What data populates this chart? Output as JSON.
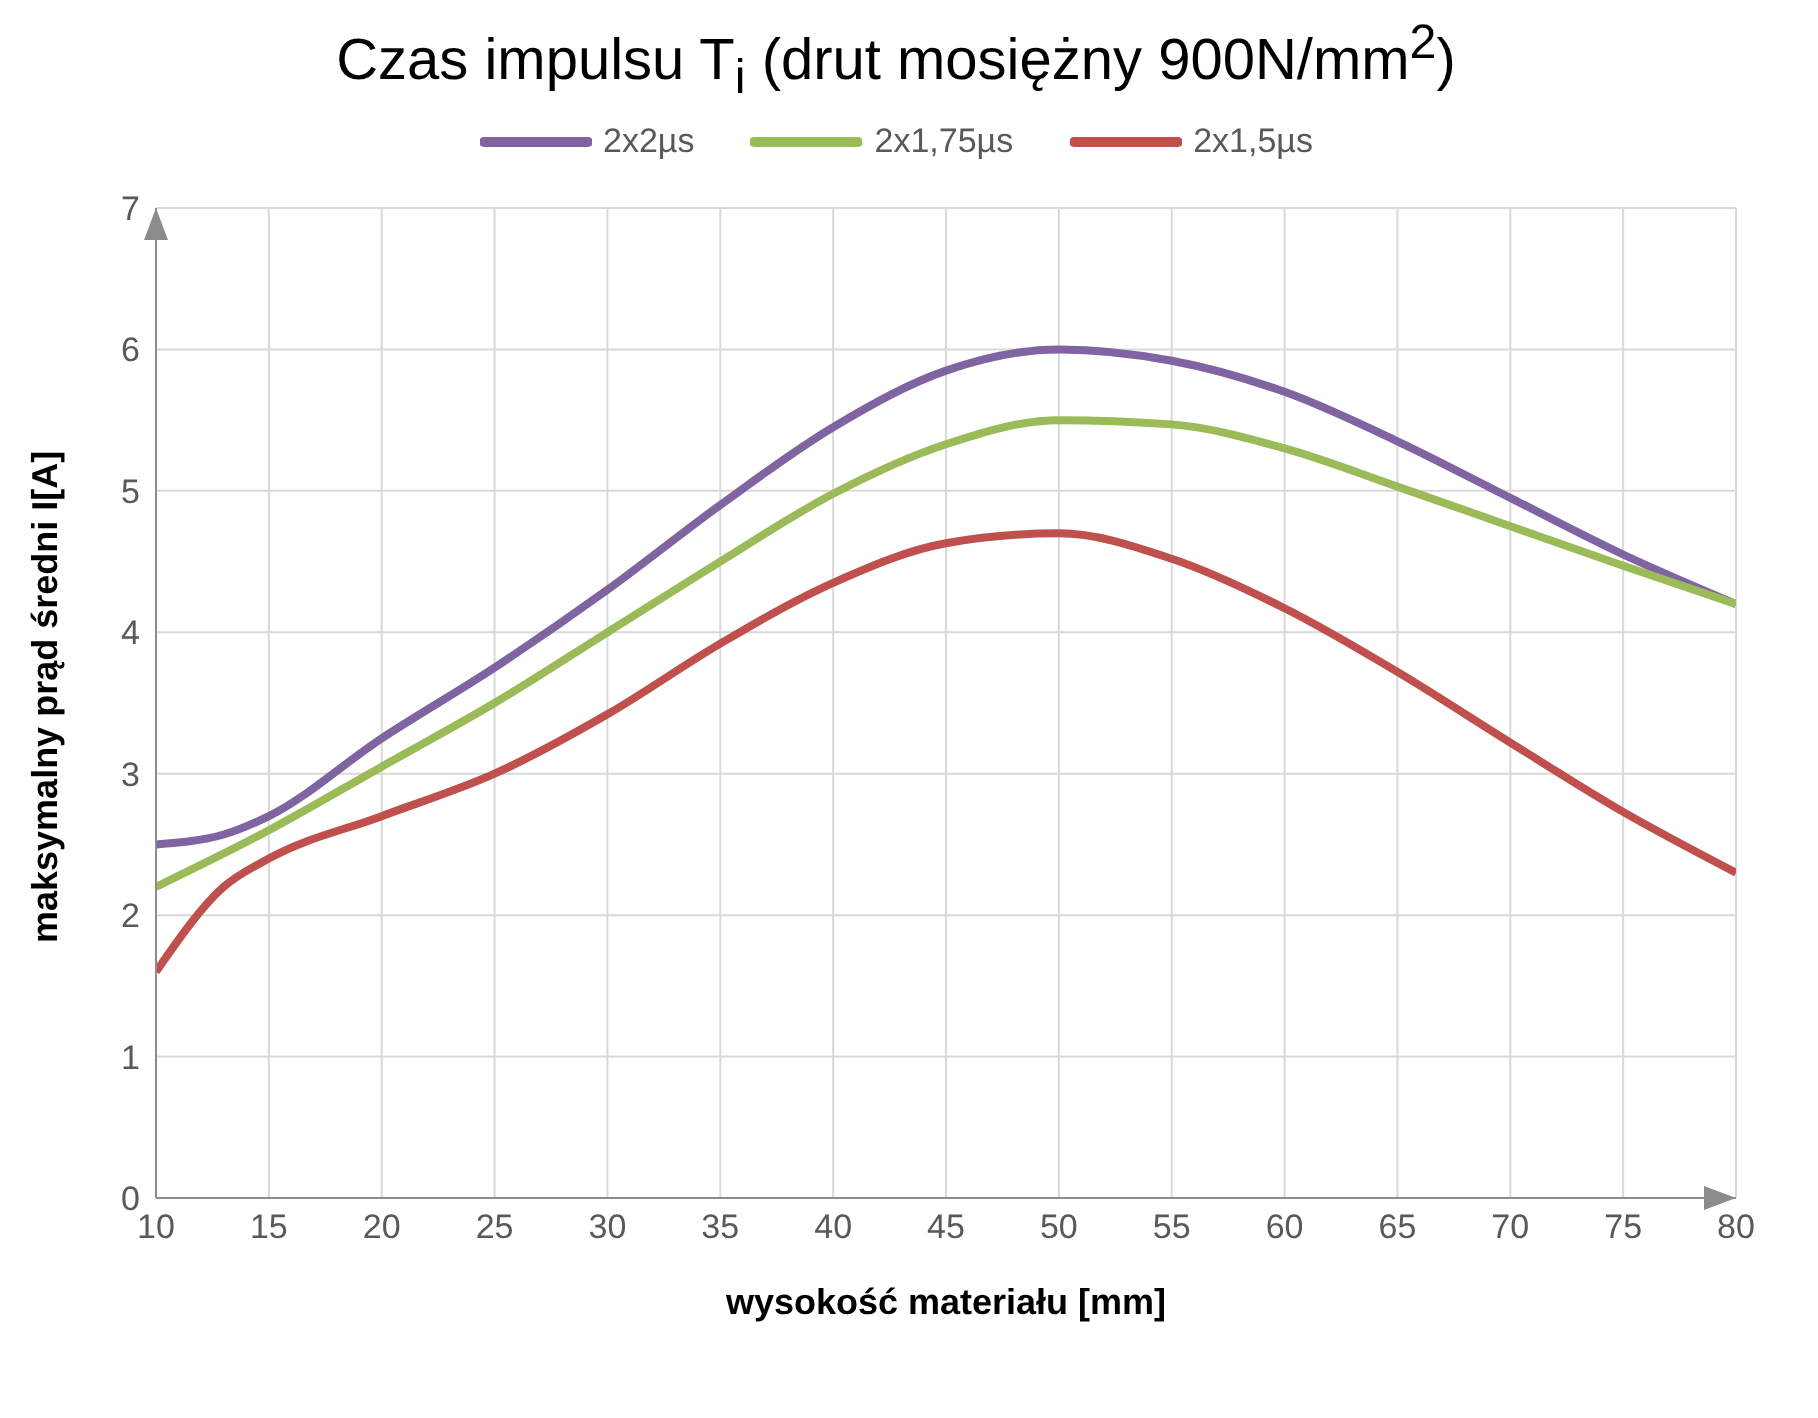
{
  "chart_data": {
    "type": "line",
    "title": "Czas impulsu T$_{i}$ (drut mosiężny 900N/mm$^{2}$)",
    "xlabel": "wysokość materiału [mm]",
    "ylabel": "maksymalny prąd średni I[A]",
    "series": [
      {
        "name": "2x2µs",
        "color": "#8064a2",
        "x": [
          10,
          13,
          15,
          20,
          25,
          30,
          35,
          40,
          45,
          50,
          55,
          60,
          65,
          70,
          75,
          80
        ],
        "values": [
          2.5,
          2.57,
          2.7,
          3.25,
          3.75,
          4.3,
          4.9,
          5.45,
          5.85,
          6.0,
          5.92,
          5.7,
          5.35,
          4.95,
          4.55,
          4.2
        ]
      },
      {
        "name": "2x1,75µs",
        "color": "#9bbb59",
        "x": [
          10,
          15,
          20,
          25,
          30,
          35,
          40,
          45,
          50,
          55,
          60,
          65,
          70,
          75,
          80
        ],
        "values": [
          2.2,
          2.6,
          3.05,
          3.5,
          4.0,
          4.5,
          4.98,
          5.33,
          5.5,
          5.47,
          5.3,
          5.03,
          4.75,
          4.47,
          4.2
        ]
      },
      {
        "name": "2x1,5µs",
        "color": "#c0504d",
        "x": [
          10,
          13,
          15,
          20,
          25,
          30,
          35,
          40,
          45,
          50,
          55,
          60,
          65,
          70,
          75,
          80
        ],
        "values": [
          1.6,
          2.2,
          2.4,
          2.7,
          3.0,
          3.42,
          3.92,
          4.35,
          4.63,
          4.7,
          4.52,
          4.17,
          3.72,
          3.22,
          2.73,
          2.3
        ]
      }
    ],
    "xlim": [
      10,
      80
    ],
    "xticks": [
      10,
      15,
      20,
      25,
      30,
      35,
      40,
      45,
      50,
      55,
      60,
      65,
      70,
      75,
      80
    ],
    "ylim": [
      0,
      7
    ],
    "yticks": [
      0,
      1,
      2,
      3,
      4,
      5,
      6,
      7
    ],
    "grid": true,
    "legend": "top",
    "marker": "none",
    "line_style": "solid"
  }
}
